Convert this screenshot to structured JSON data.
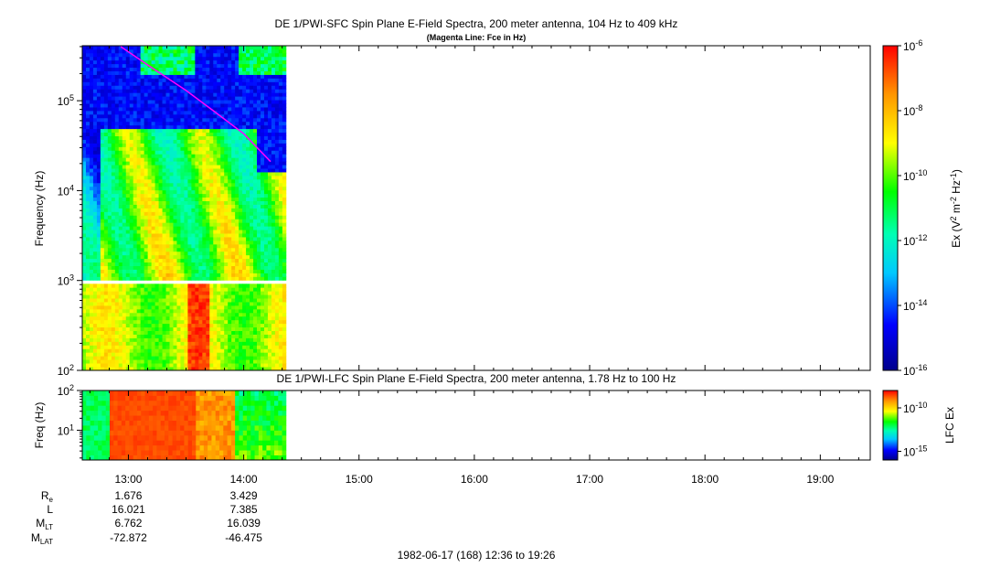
{
  "chart_data": [
    {
      "type": "heatmap",
      "title": "DE 1/PWI-SFC  Spin Plane E-Field Spectra, 200 meter antenna, 104 Hz to 409 kHz",
      "subtitle": "(Magenta Line: Fce in Hz)",
      "ylabel": "Frequency (Hz)",
      "y_scale": "log",
      "ylim": [
        100,
        409000
      ],
      "y_ticks": [
        "10^2",
        "10^3",
        "10^4",
        "10^5"
      ],
      "colorbar": {
        "label": "Ex (V^2 m^-2 Hz^-1)",
        "scale": "log",
        "range": [
          1e-16,
          1e-06
        ],
        "ticks": [
          "10^-16",
          "10^-14",
          "10^-12",
          "10^-10",
          "10^-8",
          "10^-6"
        ],
        "colors": [
          "#00008c",
          "#0000ff",
          "#00c8ff",
          "#00ffb4",
          "#00ff00",
          "#ffff00",
          "#ff9600",
          "#ff0000"
        ]
      },
      "data_time_range": [
        "12:36",
        "14:22"
      ],
      "data_gap_hz": [
        900,
        1000
      ],
      "fce_line": {
        "color": "#ff00ff",
        "time": [
          "12:56",
          "13:10",
          "13:30",
          "13:45",
          "14:00",
          "14:14"
        ],
        "hz": [
          400000,
          250000,
          130000,
          75000,
          43000,
          21000
        ]
      }
    },
    {
      "type": "heatmap",
      "title": "DE 1/PWI-LFC  Spin Plane E-Field Spectra, 200 meter antenna, 1.78 Hz to 100 Hz",
      "ylabel": "Freq (Hz)",
      "y_scale": "log",
      "ylim": [
        1.78,
        100
      ],
      "y_ticks": [
        "10^1",
        "10^2"
      ],
      "colorbar": {
        "label": "LFC Ex",
        "scale": "log",
        "range": [
          1e-16,
          1e-08
        ],
        "ticks": [
          "10^-15",
          "10^-10"
        ]
      },
      "data_time_range": [
        "12:36",
        "14:22"
      ]
    }
  ],
  "time_axis": {
    "start": "12:36",
    "end": "19:26",
    "ticks": [
      "13:00",
      "14:00",
      "15:00",
      "16:00",
      "17:00",
      "18:00",
      "19:00"
    ]
  },
  "ephemeris": {
    "rows": [
      {
        "label": "R",
        "sub": "e",
        "values": [
          "1.676",
          "3.429"
        ]
      },
      {
        "label": "L",
        "sub": "",
        "values": [
          "16.021",
          "7.385"
        ]
      },
      {
        "label": "M",
        "sub": "LT",
        "values": [
          "6.762",
          "16.039"
        ]
      },
      {
        "label": "M",
        "sub": "LAT",
        "values": [
          "-72.872",
          "-46.475"
        ]
      }
    ]
  },
  "footer": "1982-06-17 (168) 12:36 to 19:26"
}
